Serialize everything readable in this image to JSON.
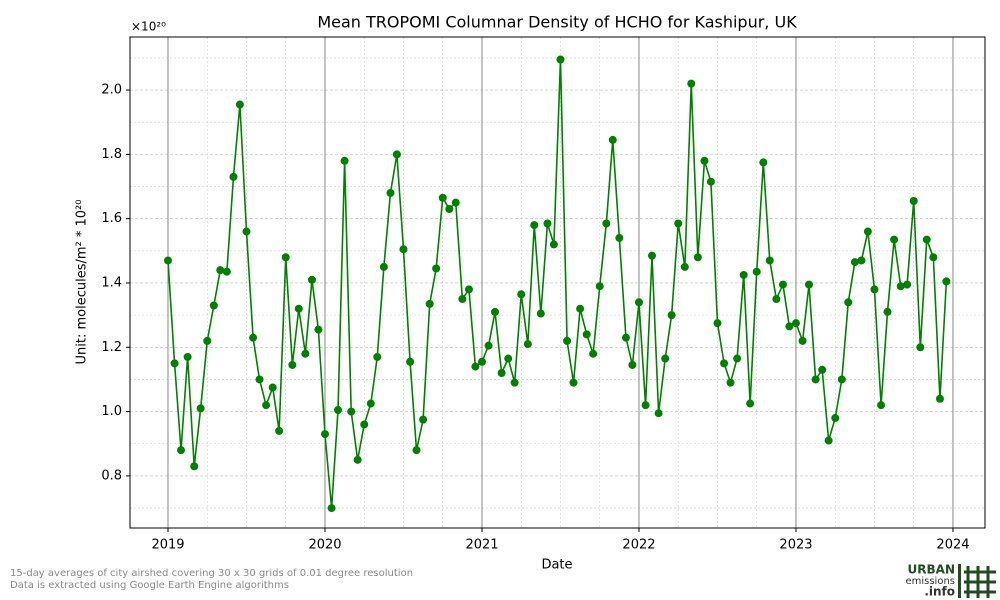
{
  "chart_data": {
    "type": "line",
    "title": "Mean TROPOMI Columnar Density of HCHO for Kashipur, UK",
    "xlabel": "Date",
    "ylabel": "Unit: molecules/m² * 10²⁰",
    "y_offset_label": "×10²⁰",
    "footnotes": [
      "15-day averages of city airshed covering 30 x 30 grids of 0.01 degree resolution",
      "Data is extracted using Google Earth Engine algorithms"
    ],
    "logo": [
      "URBAN",
      "emissions",
      ".info"
    ],
    "color": "#008000",
    "grid": true,
    "xlim": [
      2018.758,
      2024.204
    ],
    "ylim": [
      0.638,
      2.165
    ],
    "xticks": [
      2019,
      2020,
      2021,
      2022,
      2023,
      2024
    ],
    "xminorticks": [
      2019.25,
      2019.5,
      2019.75,
      2020.25,
      2020.5,
      2020.75,
      2021.25,
      2021.5,
      2021.75,
      2022.25,
      2022.5,
      2022.75,
      2023.25,
      2023.5,
      2023.75
    ],
    "yticks": [
      0.8,
      {
        "value": 1,
        "label": "1.0"
      },
      1.2,
      1.4,
      1.6,
      1.8,
      {
        "value": 2,
        "label": "2.0"
      }
    ],
    "yminorticks": [
      0.7,
      0.9,
      1.1,
      1.3,
      1.5,
      1.7,
      1.9,
      2.1
    ],
    "x": [
      2019.0,
      2019.042,
      2019.083,
      2019.125,
      2019.167,
      2019.208,
      2019.25,
      2019.292,
      2019.333,
      2019.375,
      2019.417,
      2019.458,
      2019.5,
      2019.542,
      2019.583,
      2019.625,
      2019.667,
      2019.708,
      2019.75,
      2019.792,
      2019.833,
      2019.875,
      2019.917,
      2019.958,
      2020.0,
      2020.042,
      2020.083,
      2020.125,
      2020.167,
      2020.208,
      2020.25,
      2020.292,
      2020.333,
      2020.375,
      2020.417,
      2020.458,
      2020.5,
      2020.542,
      2020.583,
      2020.625,
      2020.667,
      2020.708,
      2020.75,
      2020.792,
      2020.833,
      2020.875,
      2020.917,
      2020.958,
      2021.0,
      2021.042,
      2021.083,
      2021.125,
      2021.167,
      2021.208,
      2021.25,
      2021.292,
      2021.333,
      2021.375,
      2021.417,
      2021.458,
      2021.5,
      2021.542,
      2021.583,
      2021.625,
      2021.667,
      2021.708,
      2021.75,
      2021.792,
      2021.833,
      2021.875,
      2021.917,
      2021.958,
      2022.0,
      2022.042,
      2022.083,
      2022.125,
      2022.167,
      2022.208,
      2022.25,
      2022.292,
      2022.333,
      2022.375,
      2022.417,
      2022.458,
      2022.5,
      2022.542,
      2022.583,
      2022.625,
      2022.667,
      2022.708,
      2022.75,
      2022.792,
      2022.833,
      2022.875,
      2022.917,
      2022.958,
      2023.0,
      2023.042,
      2023.083,
      2023.125,
      2023.167,
      2023.208,
      2023.25,
      2023.292,
      2023.333,
      2023.375,
      2023.417,
      2023.458,
      2023.5,
      2023.542,
      2023.583,
      2023.625,
      2023.667,
      2023.708,
      2023.75,
      2023.792,
      2023.833,
      2023.875,
      2023.917,
      2023.958
    ],
    "values": [
      1.47,
      1.15,
      0.88,
      1.17,
      0.83,
      1.01,
      1.22,
      1.33,
      1.44,
      1.435,
      1.73,
      1.955,
      1.56,
      1.23,
      1.1,
      1.02,
      1.075,
      0.94,
      1.48,
      1.145,
      1.32,
      1.18,
      1.41,
      1.255,
      0.93,
      0.7,
      1.005,
      1.78,
      1.0,
      0.85,
      0.96,
      1.025,
      1.17,
      1.45,
      1.68,
      1.8,
      1.505,
      1.155,
      0.88,
      0.975,
      1.335,
      1.445,
      1.665,
      1.63,
      1.65,
      1.35,
      1.38,
      1.14,
      1.155,
      1.205,
      1.31,
      1.12,
      1.165,
      1.09,
      1.365,
      1.21,
      1.58,
      1.305,
      1.585,
      1.52,
      2.095,
      1.22,
      1.09,
      1.32,
      1.24,
      1.18,
      1.39,
      1.585,
      1.845,
      1.54,
      1.23,
      1.145,
      1.34,
      1.02,
      1.485,
      0.995,
      1.165,
      1.3,
      1.585,
      1.45,
      2.02,
      1.48,
      1.78,
      1.715,
      1.275,
      1.15,
      1.09,
      1.165,
      1.425,
      1.025,
      1.435,
      1.775,
      1.47,
      1.35,
      1.395,
      1.265,
      1.275,
      1.22,
      1.395,
      1.1,
      1.13,
      0.91,
      0.98,
      1.1,
      1.34,
      1.465,
      1.47,
      1.56,
      1.38,
      1.02,
      1.31,
      1.535,
      1.39,
      1.395,
      1.655,
      1.2,
      1.535,
      1.48,
      1.04,
      1.405
    ]
  }
}
